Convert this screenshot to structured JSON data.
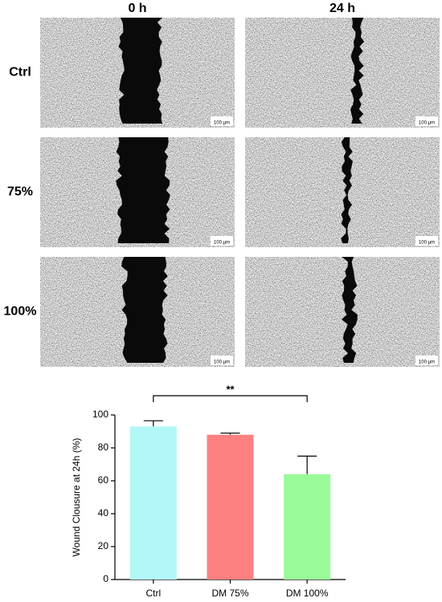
{
  "columns": [
    "0 h",
    "24 h"
  ],
  "rows": [
    "Ctrl",
    "75%",
    "100%"
  ],
  "scale_bar": "100 µm",
  "chart_data": {
    "type": "bar",
    "ylabel": "Wound Clousure at 24h (%)",
    "categories": [
      "Ctrl",
      "DM 75%",
      "DM 100%"
    ],
    "values": [
      93,
      88,
      64
    ],
    "errors": [
      3.5,
      1,
      11
    ],
    "colors": [
      "#b3f8f8",
      "#fd8080",
      "#99fa99"
    ],
    "ylim": [
      0,
      100
    ],
    "yticks": [
      0,
      20,
      40,
      60,
      80,
      100
    ],
    "annotation": "**"
  }
}
